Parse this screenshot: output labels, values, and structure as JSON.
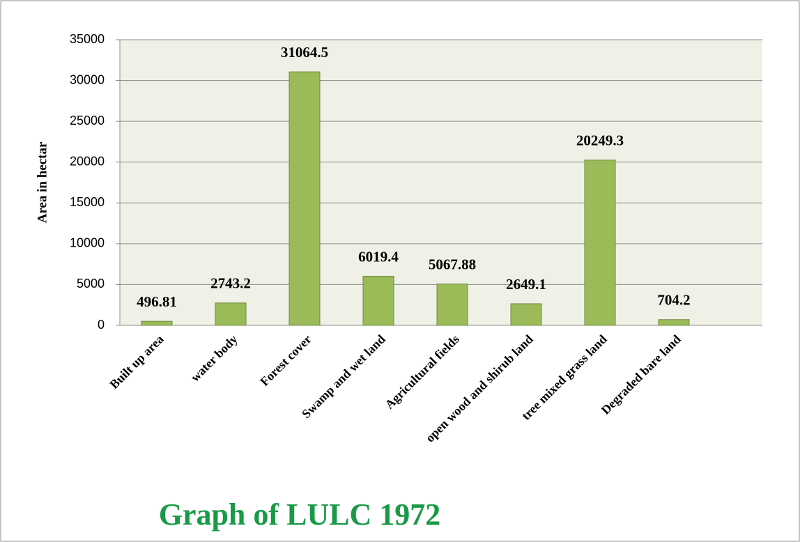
{
  "chart_data": {
    "type": "bar",
    "title": "Graph of LULC 1972",
    "y_label": "Area in hectar",
    "categories": [
      "Built up area",
      "water body",
      "Forest cover",
      "Swamp and wet land",
      "Agricultural fields",
      "open wood and shirub land",
      "tree mixed grass land",
      "Degraded bare land"
    ],
    "values": [
      496.81,
      2743.2,
      31064.5,
      6019.4,
      5067.88,
      2649.1,
      20249.3,
      704.2
    ],
    "color": "#9bbb59",
    "ylim": [
      0,
      35000
    ],
    "yticks": [
      0,
      5000,
      10000,
      15000,
      20000,
      25000,
      30000,
      35000
    ],
    "grid": true
  }
}
